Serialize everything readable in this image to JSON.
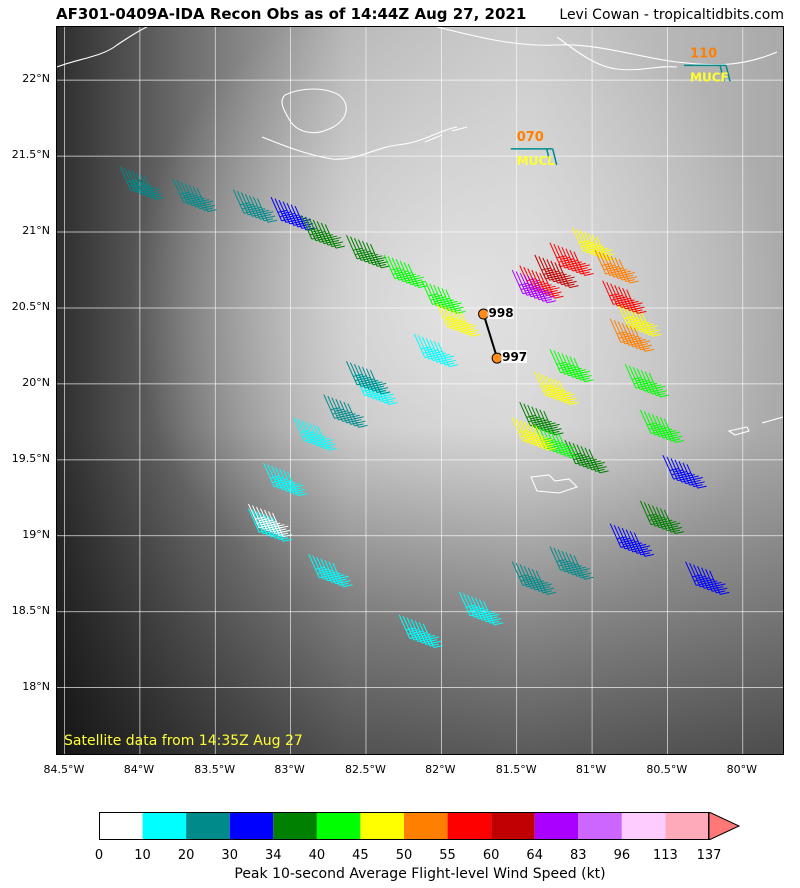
{
  "header": {
    "title": "AF301-0409A-IDA Recon Obs as of 14:44Z Aug 27, 2021",
    "credit": "Levi Cowan - tropicaltidbits.com"
  },
  "map": {
    "lon_range": [
      -84.55,
      -79.72
    ],
    "lat_range": [
      17.55,
      22.35
    ],
    "lon_ticks": [
      "84.5°W",
      "84°W",
      "83.5°W",
      "83°W",
      "82.5°W",
      "82°W",
      "81.5°W",
      "81°W",
      "80.5°W",
      "80°W"
    ],
    "lon_tick_values": [
      -84.5,
      -84,
      -83.5,
      -83,
      -82.5,
      -82,
      -81.5,
      -81,
      -80.5,
      -80
    ],
    "lat_ticks": [
      "22°N",
      "21.5°N",
      "21°N",
      "20.5°N",
      "20°N",
      "19.5°N",
      "19°N",
      "18.5°N",
      "18°N"
    ],
    "lat_tick_values": [
      22,
      21.5,
      21,
      20.5,
      20,
      19.5,
      19,
      18.5,
      18
    ],
    "satellite_caption": "Satellite data from 14:35Z Aug 27",
    "surface_obs": [
      {
        "label": "998",
        "lon": -81.72,
        "lat": 20.46
      },
      {
        "label": "997",
        "lon": -81.63,
        "lat": 20.17
      }
    ],
    "upper_obs": [
      {
        "value": "070",
        "station": "MUCL",
        "lon": -81.5,
        "lat": 21.6
      },
      {
        "value": "110",
        "station": "MUCF",
        "lon": -80.35,
        "lat": 22.15
      }
    ]
  },
  "colorbar": {
    "label": "Peak 10-second Average Flight-level Wind Speed (kt)",
    "ticks": [
      "0",
      "10",
      "20",
      "30",
      "34",
      "40",
      "45",
      "50",
      "55",
      "60",
      "64",
      "83",
      "96",
      "113",
      "137"
    ],
    "colors": [
      "#ffffff",
      "#00ffff",
      "#008b8b",
      "#0000ff",
      "#008000",
      "#00ff00",
      "#ffff00",
      "#ff7f00",
      "#ff0000",
      "#c00000",
      "#aa00ff",
      "#cc66ff",
      "#ffccff",
      "#ffaabb"
    ],
    "extend_color": "#ff7777"
  },
  "chart_data": {
    "type": "scatter",
    "title": "AF301-0409A-IDA Recon Obs as of 14:44Z Aug 27, 2021",
    "xlabel": "",
    "ylabel": "",
    "xlim": [
      -84.55,
      -79.72
    ],
    "ylim": [
      17.55,
      22.35
    ],
    "series": [
      {
        "color": "#008b8b",
        "points": [
          [
            -84.05,
            21.4
          ],
          [
            -83.7,
            21.32
          ],
          [
            -83.3,
            21.25
          ]
        ]
      },
      {
        "color": "#0000ff",
        "points": [
          [
            -83.05,
            21.2
          ]
        ]
      },
      {
        "color": "#008000",
        "points": [
          [
            -82.85,
            21.08
          ],
          [
            -82.55,
            20.95
          ]
        ]
      },
      {
        "color": "#00ff00",
        "points": [
          [
            -82.3,
            20.82
          ],
          [
            -82.05,
            20.65
          ]
        ]
      },
      {
        "color": "#ffff00",
        "points": [
          [
            -81.95,
            20.5
          ]
        ]
      },
      {
        "color": "#00ffff",
        "points": [
          [
            -82.1,
            20.3
          ],
          [
            -82.5,
            20.05
          ],
          [
            -82.9,
            19.75
          ],
          [
            -83.1,
            19.45
          ],
          [
            -83.2,
            19.15
          ],
          [
            -82.8,
            18.85
          ],
          [
            -82.2,
            18.45
          ],
          [
            -81.8,
            18.6
          ]
        ]
      },
      {
        "color": "#008b8b",
        "points": [
          [
            -82.55,
            20.12
          ],
          [
            -82.7,
            19.9
          ],
          [
            -81.45,
            18.8
          ],
          [
            -81.2,
            18.9
          ]
        ]
      },
      {
        "color": "#0000ff",
        "points": [
          [
            -80.8,
            19.05
          ],
          [
            -80.3,
            18.8
          ],
          [
            -80.45,
            19.5
          ]
        ]
      },
      {
        "color": "#008000",
        "points": [
          [
            -80.6,
            19.2
          ],
          [
            -81.1,
            19.6
          ],
          [
            -81.4,
            19.85
          ]
        ]
      },
      {
        "color": "#00ff00",
        "points": [
          [
            -81.3,
            19.7
          ],
          [
            -80.6,
            19.8
          ],
          [
            -81.2,
            20.2
          ],
          [
            -80.7,
            20.1
          ]
        ]
      },
      {
        "color": "#ffff00",
        "points": [
          [
            -81.45,
            19.75
          ],
          [
            -81.3,
            20.05
          ],
          [
            -80.75,
            20.5
          ],
          [
            -81.05,
            21.0
          ]
        ]
      },
      {
        "color": "#ff7f00",
        "points": [
          [
            -80.9,
            20.85
          ],
          [
            -80.8,
            20.4
          ]
        ]
      },
      {
        "color": "#ff0000",
        "points": [
          [
            -81.4,
            20.75
          ],
          [
            -81.2,
            20.9
          ],
          [
            -80.85,
            20.65
          ]
        ]
      },
      {
        "color": "#c00000",
        "points": [
          [
            -81.3,
            20.82
          ]
        ]
      },
      {
        "color": "#aa00ff",
        "points": [
          [
            -81.45,
            20.72
          ]
        ]
      },
      {
        "color": "#ffffff",
        "points": [
          [
            -83.2,
            19.18
          ]
        ]
      }
    ]
  }
}
